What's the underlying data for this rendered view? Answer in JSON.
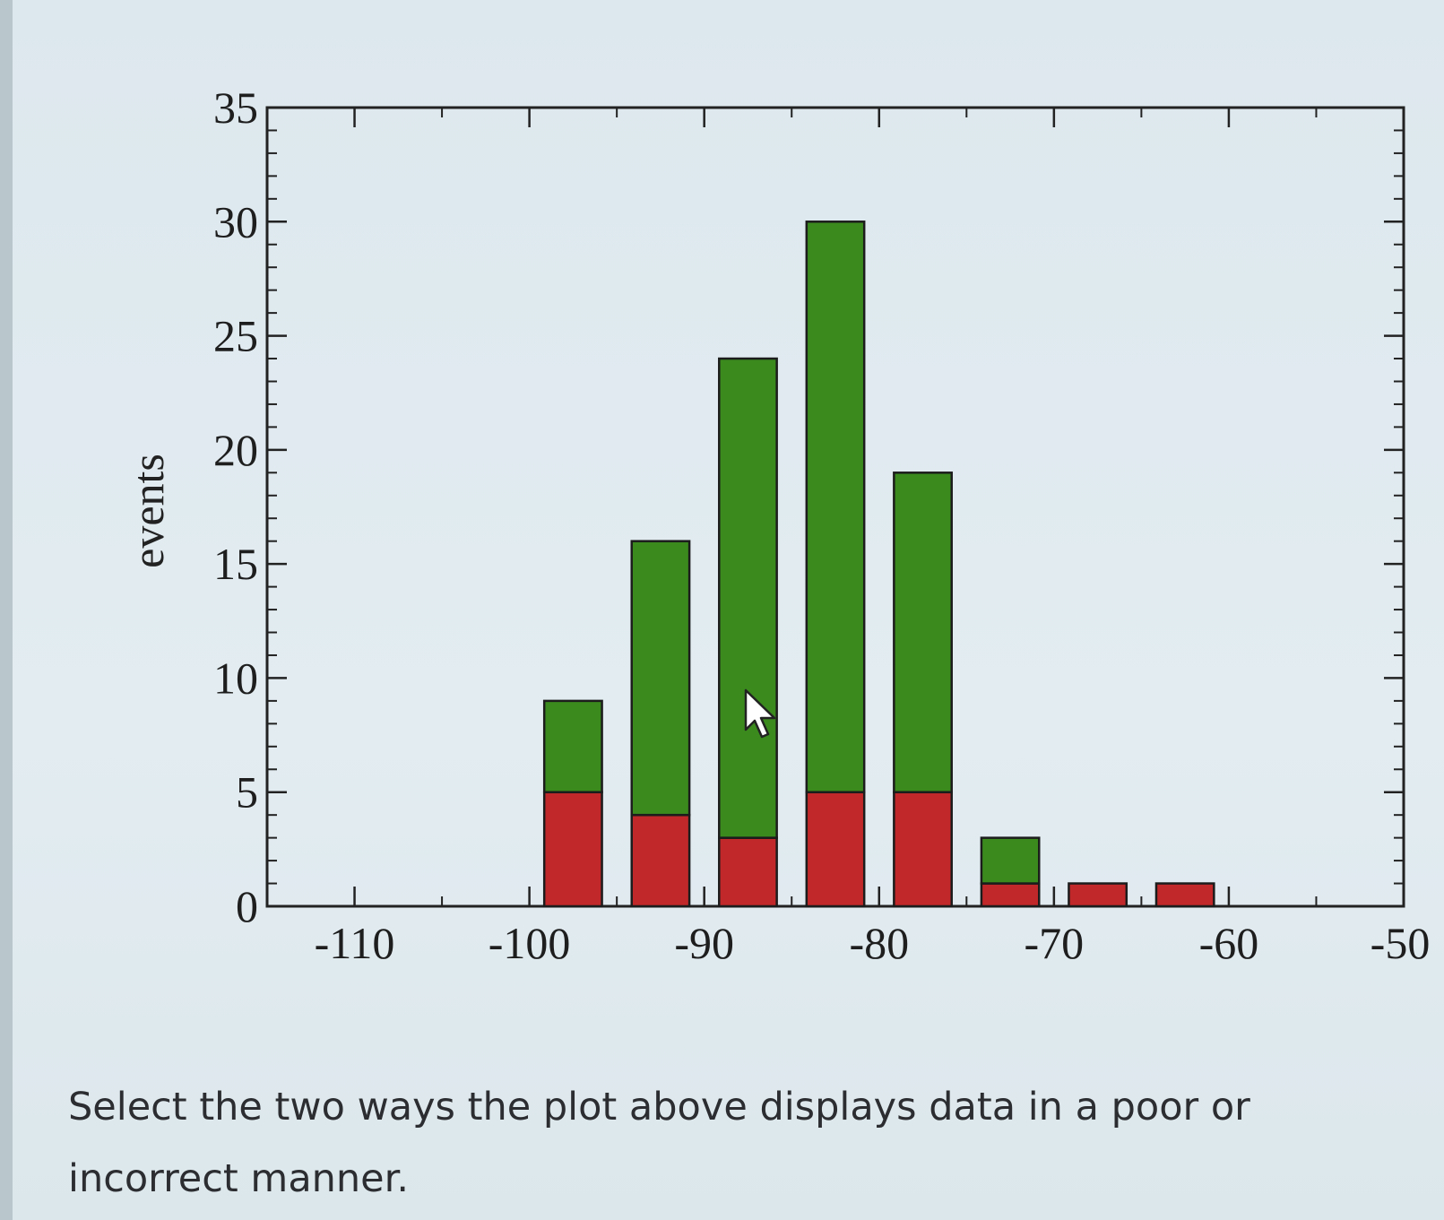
{
  "question": {
    "text": "Select the two ways the plot above displays data in a poor or incorrect manner."
  },
  "colors": {
    "background": "#dfe9ef",
    "green": "#3a8a1e",
    "red": "#c0282a",
    "axis": "#222222"
  },
  "chart_data": {
    "type": "bar",
    "stacked": true,
    "ylabel": "events",
    "xlabel": "",
    "xlim": [
      -115,
      -50
    ],
    "ylim": [
      0,
      35
    ],
    "xticks": [
      -110,
      -100,
      -90,
      -80,
      -70,
      -60,
      -50
    ],
    "yticks": [
      0,
      5,
      10,
      15,
      20,
      25,
      30,
      35
    ],
    "grid": false,
    "x": [
      -97.5,
      -92.5,
      -87.5,
      -82.5,
      -77.5,
      -72.5,
      -67.5,
      -62.5
    ],
    "series": [
      {
        "color": "red",
        "values": [
          5,
          4,
          3,
          5,
          5,
          1,
          1,
          1
        ]
      },
      {
        "color": "green",
        "values": [
          4,
          12,
          21,
          25,
          14,
          2,
          0,
          0
        ]
      }
    ]
  }
}
